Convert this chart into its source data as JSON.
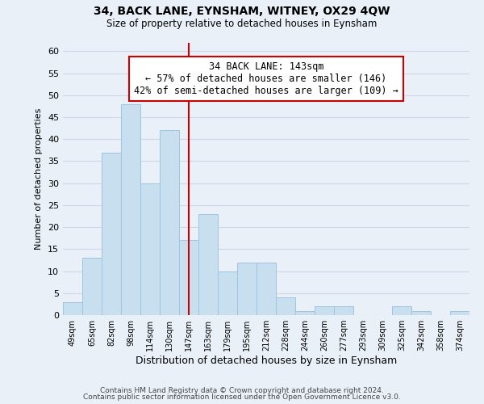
{
  "title": "34, BACK LANE, EYNSHAM, WITNEY, OX29 4QW",
  "subtitle": "Size of property relative to detached houses in Eynsham",
  "xlabel": "Distribution of detached houses by size in Eynsham",
  "ylabel": "Number of detached properties",
  "footer_lines": [
    "Contains HM Land Registry data © Crown copyright and database right 2024.",
    "Contains public sector information licensed under the Open Government Licence v3.0."
  ],
  "bins": [
    "49sqm",
    "65sqm",
    "82sqm",
    "98sqm",
    "114sqm",
    "130sqm",
    "147sqm",
    "163sqm",
    "179sqm",
    "195sqm",
    "212sqm",
    "228sqm",
    "244sqm",
    "260sqm",
    "277sqm",
    "293sqm",
    "309sqm",
    "325sqm",
    "342sqm",
    "358sqm",
    "374sqm"
  ],
  "values": [
    3,
    13,
    37,
    48,
    30,
    42,
    17,
    23,
    10,
    12,
    12,
    4,
    1,
    2,
    2,
    0,
    0,
    2,
    1,
    0,
    1
  ],
  "bar_color": "#c8dff0",
  "bar_edge_color": "#a0c4e0",
  "vline_x_index": 6,
  "vline_color": "#cc0000",
  "annotation_line1": "34 BACK LANE: 143sqm",
  "annotation_line2": "← 57% of detached houses are smaller (146)",
  "annotation_line3": "42% of semi-detached houses are larger (109) →",
  "annotation_box_color": "#ffffff",
  "annotation_box_edge": "#cc0000",
  "ylim": [
    0,
    62
  ],
  "yticks": [
    0,
    5,
    10,
    15,
    20,
    25,
    30,
    35,
    40,
    45,
    50,
    55,
    60
  ],
  "grid_color": "#d0d8e8",
  "background_color": "#eaf0f8"
}
